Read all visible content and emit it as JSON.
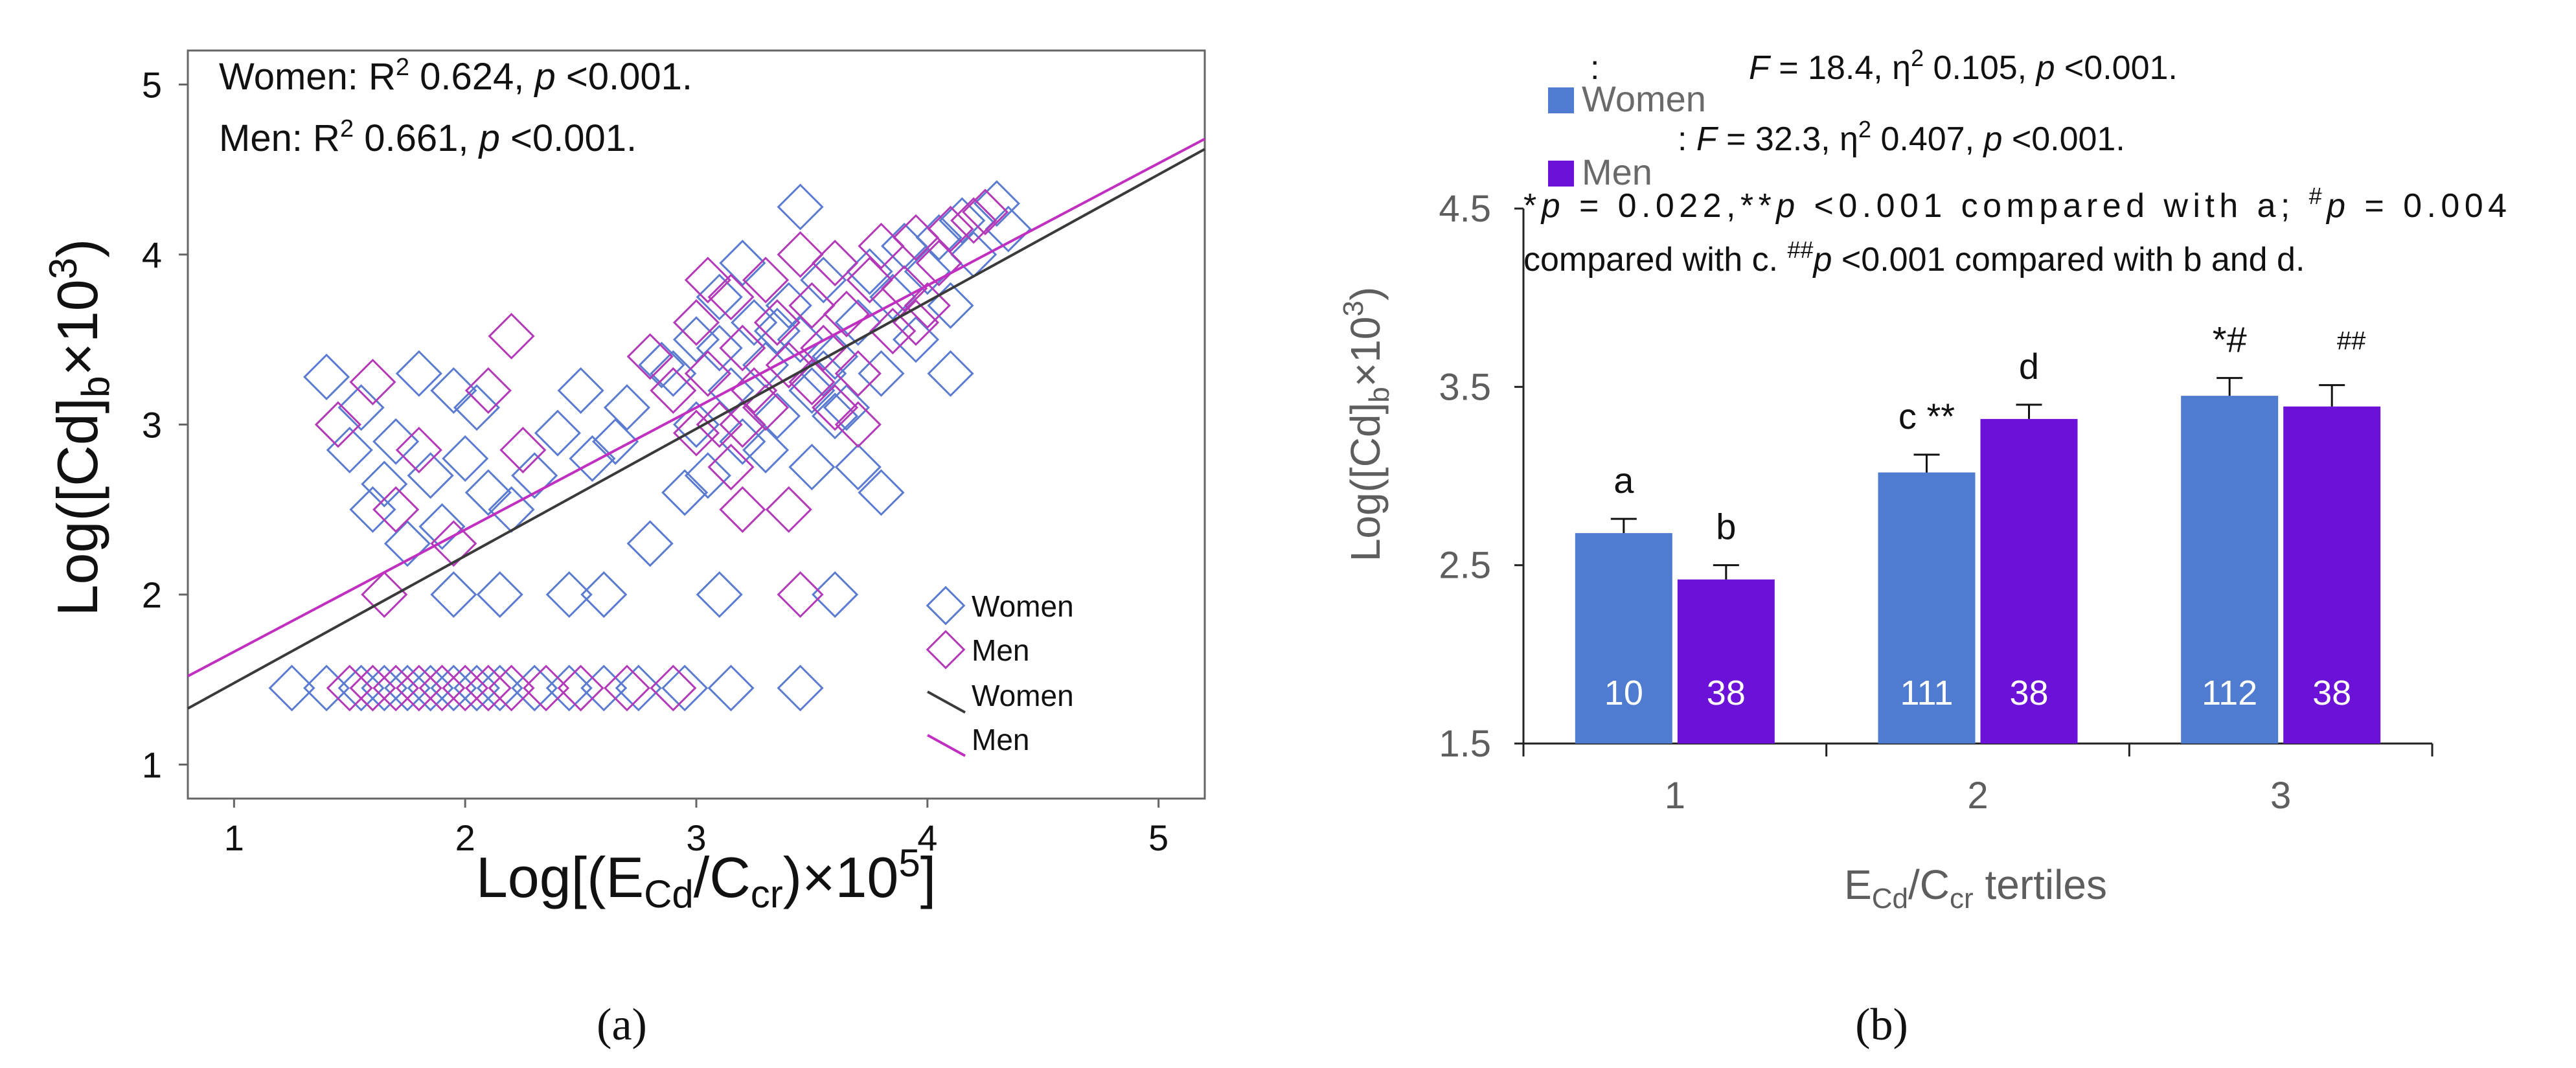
{
  "colors": {
    "women": "#5b7bd0",
    "men": "#b23ab8",
    "women_line": "#3a3a3a",
    "men_line": "#c12fc1",
    "bar_women": "#4f7bd0",
    "bar_men": "#6c12d8",
    "axis": "#555555",
    "bar_axis_text": "#5e5e5e"
  },
  "panel_a": {
    "caption": "(a)",
    "stat_women_prefix": "Women: R",
    "stat_women_sup": "2",
    "stat_women_mid": " 0.624, ",
    "stat_women_p": "p",
    "stat_women_suffix": " <0.001.",
    "stat_men_prefix": "Men: R",
    "stat_men_sup": "2",
    "stat_men_mid": " 0.661, ",
    "stat_men_p": "p",
    "stat_men_suffix": " <0.001.",
    "ylabel_a": "Log([Cd]",
    "ylabel_sub": "b",
    "ylabel_b": "×10",
    "ylabel_sup": "3",
    "ylabel_c": ")",
    "xlabel_a": "Log[(E",
    "xlabel_sub1": "Cd",
    "xlabel_b": "/C",
    "xlabel_sub2": "cr",
    "xlabel_c": ")×10",
    "xlabel_sup": "5",
    "xlabel_d": "]",
    "legend": [
      {
        "label": "Women",
        "kind": "marker",
        "series": "women"
      },
      {
        "label": "Men",
        "kind": "marker",
        "series": "men"
      },
      {
        "label": "Women",
        "kind": "line",
        "series": "women"
      },
      {
        "label": "Men",
        "kind": "line",
        "series": "men"
      }
    ]
  },
  "panel_b": {
    "caption": "(b)",
    "legend": [
      {
        "label": "Women",
        "series": "women"
      },
      {
        "label": "Men",
        "series": "men"
      }
    ],
    "stat_women_a": ": ",
    "stat_women_F": "F",
    "stat_women_b": " = 18.4, η",
    "stat_women_sup": "2",
    "stat_women_c": " 0.105, ",
    "stat_women_p": "p",
    "stat_women_d": " <0.001.",
    "stat_men_a": ": ",
    "stat_men_F": "F",
    "stat_men_b": " = 32.3, η",
    "stat_men_sup": "2",
    "stat_men_c": " 0.407, ",
    "stat_men_p": "p",
    "stat_men_d": " <0.001.",
    "note_line1_parts": [
      "*",
      "p",
      " = 0.022,**",
      "p",
      " <0.001 compared with a; ",
      "#",
      "p",
      " = 0.004"
    ],
    "note_line2_parts": [
      "compared with c. ",
      "##",
      "p",
      " <0.001 compared with b and d."
    ],
    "ylabel_a": "Log([Cd]",
    "ylabel_sub": "b",
    "ylabel_b": "×10",
    "ylabel_sup": "3",
    "ylabel_c": ")",
    "xlabel_a": "E",
    "xlabel_sub1": "Cd",
    "xlabel_b": "/C",
    "xlabel_sub2": "cr",
    "xlabel_c": " tertiles"
  },
  "chart_data": [
    {
      "type": "scatter",
      "title": "",
      "xlabel": "Log[(ECd/Ccr)×10^5]",
      "ylabel": "Log([Cd]b×10^3)",
      "xlim": [
        0.8,
        5.2
      ],
      "ylim": [
        0.8,
        5.2
      ],
      "xticks": [
        1,
        2,
        3,
        4,
        5
      ],
      "yticks": [
        1,
        2,
        3,
        4,
        5
      ],
      "regression": [
        {
          "name": "Women",
          "x": [
            0.8,
            5.2
          ],
          "y": [
            1.33,
            4.62
          ],
          "r2": 0.624
        },
        {
          "name": "Men",
          "x": [
            0.8,
            5.2
          ],
          "y": [
            1.52,
            4.68
          ],
          "r2": 0.661
        }
      ],
      "series": [
        {
          "name": "Women",
          "points": [
            [
              1.4,
              3.28
            ],
            [
              1.55,
              3.1
            ],
            [
              1.7,
              2.9
            ],
            [
              1.85,
              2.7
            ],
            [
              1.6,
              2.5
            ],
            [
              1.75,
              2.3
            ],
            [
              1.9,
              2.4
            ],
            [
              2.0,
              2.8
            ],
            [
              2.1,
              2.6
            ],
            [
              2.05,
              3.1
            ],
            [
              1.95,
              3.2
            ],
            [
              2.2,
              2.5
            ],
            [
              2.3,
              2.7
            ],
            [
              2.4,
              2.95
            ],
            [
              2.5,
              3.2
            ],
            [
              2.55,
              2.8
            ],
            [
              2.65,
              2.9
            ],
            [
              2.8,
              2.3
            ],
            [
              1.5,
              2.85
            ],
            [
              1.65,
              2.65
            ],
            [
              1.8,
              3.3
            ],
            [
              1.95,
              2.0
            ],
            [
              2.15,
              2.0
            ],
            [
              2.45,
              2.0
            ],
            [
              2.6,
              2.0
            ],
            [
              3.1,
              2.0
            ],
            [
              3.6,
              2.0
            ],
            [
              2.7,
              3.1
            ],
            [
              2.9,
              3.3
            ],
            [
              3.0,
              3.0
            ],
            [
              3.05,
              2.7
            ],
            [
              3.1,
              3.45
            ],
            [
              3.15,
              3.2
            ],
            [
              3.2,
              2.9
            ],
            [
              3.25,
              3.6
            ],
            [
              3.3,
              3.35
            ],
            [
              3.35,
              3.05
            ],
            [
              3.4,
              3.7
            ],
            [
              3.45,
              3.5
            ],
            [
              3.5,
              3.2
            ],
            [
              3.55,
              3.85
            ],
            [
              3.6,
              3.4
            ],
            [
              3.65,
              3.1
            ],
            [
              3.7,
              3.6
            ],
            [
              3.75,
              3.9
            ],
            [
              3.8,
              3.3
            ],
            [
              3.85,
              3.75
            ],
            [
              3.9,
              4.05
            ],
            [
              3.95,
              3.5
            ],
            [
              4.0,
              3.9
            ],
            [
              4.05,
              4.1
            ],
            [
              4.1,
              3.7
            ],
            [
              4.15,
              4.2
            ],
            [
              4.2,
              4.0
            ],
            [
              4.3,
              4.3
            ],
            [
              4.35,
              4.15
            ],
            [
              3.45,
              4.28
            ],
            [
              3.2,
              3.95
            ],
            [
              3.3,
              2.85
            ],
            [
              3.5,
              2.75
            ],
            [
              3.8,
              2.6
            ],
            [
              3.6,
              3.05
            ],
            [
              3.1,
              3.75
            ],
            [
              3.0,
              3.5
            ],
            [
              2.85,
              3.35
            ],
            [
              2.95,
              2.6
            ],
            [
              3.7,
              2.75
            ],
            [
              4.1,
              3.3
            ],
            [
              3.35,
              3.55
            ],
            [
              3.55,
              3.3
            ],
            [
              1.25,
              1.45
            ],
            [
              1.4,
              1.45
            ],
            [
              1.55,
              1.45
            ],
            [
              1.65,
              1.45
            ],
            [
              1.75,
              1.45
            ],
            [
              1.85,
              1.45
            ],
            [
              1.95,
              1.45
            ],
            [
              2.05,
              1.45
            ],
            [
              2.15,
              1.45
            ],
            [
              2.3,
              1.45
            ],
            [
              2.45,
              1.45
            ],
            [
              2.6,
              1.45
            ],
            [
              2.75,
              1.45
            ],
            [
              2.95,
              1.45
            ],
            [
              3.15,
              1.45
            ],
            [
              3.45,
              1.45
            ]
          ]
        },
        {
          "name": "Men",
          "points": [
            [
              1.45,
              3.0
            ],
            [
              1.6,
              3.25
            ],
            [
              1.8,
              2.85
            ],
            [
              2.2,
              3.52
            ],
            [
              2.25,
              2.85
            ],
            [
              1.95,
              2.3
            ],
            [
              1.7,
              2.5
            ],
            [
              1.65,
              2.0
            ],
            [
              2.1,
              3.2
            ],
            [
              3.45,
              2.0
            ],
            [
              3.2,
              3.0
            ],
            [
              2.8,
              3.4
            ],
            [
              2.9,
              3.2
            ],
            [
              3.0,
              3.6
            ],
            [
              3.05,
              3.3
            ],
            [
              3.1,
              3.0
            ],
            [
              3.15,
              3.75
            ],
            [
              3.2,
              3.45
            ],
            [
              3.25,
              3.2
            ],
            [
              3.3,
              3.85
            ],
            [
              3.35,
              3.6
            ],
            [
              3.4,
              3.35
            ],
            [
              3.45,
              4.0
            ],
            [
              3.5,
              3.7
            ],
            [
              3.55,
              3.45
            ],
            [
              3.6,
              3.95
            ],
            [
              3.65,
              3.65
            ],
            [
              3.7,
              3.3
            ],
            [
              3.75,
              3.85
            ],
            [
              3.8,
              4.05
            ],
            [
              3.85,
              3.55
            ],
            [
              3.9,
              3.8
            ],
            [
              3.95,
              4.1
            ],
            [
              4.0,
              3.7
            ],
            [
              4.05,
              3.95
            ],
            [
              4.1,
              4.15
            ],
            [
              4.2,
              4.2
            ],
            [
              4.25,
              4.25
            ],
            [
              3.0,
              2.95
            ],
            [
              3.15,
              2.75
            ],
            [
              3.3,
              3.1
            ],
            [
              3.05,
              3.85
            ],
            [
              3.6,
              3.1
            ],
            [
              3.5,
              3.25
            ],
            [
              3.4,
              2.5
            ],
            [
              3.2,
              2.5
            ],
            [
              3.7,
              3.0
            ],
            [
              3.95,
              3.6
            ],
            [
              1.5,
              1.45
            ],
            [
              1.6,
              1.45
            ],
            [
              1.7,
              1.45
            ],
            [
              1.8,
              1.45
            ],
            [
              1.9,
              1.45
            ],
            [
              2.0,
              1.45
            ],
            [
              2.1,
              1.45
            ],
            [
              2.2,
              1.45
            ],
            [
              2.35,
              1.45
            ],
            [
              2.5,
              1.45
            ],
            [
              2.7,
              1.45
            ],
            [
              2.9,
              1.45
            ]
          ]
        }
      ]
    },
    {
      "type": "bar",
      "title": "",
      "xlabel": "ECd/Ccr tertiles",
      "ylabel": "Log([Cd]b×10^3)",
      "ylim": [
        1.5,
        4.5
      ],
      "yticks": [
        1.5,
        2.5,
        3.5,
        4.5
      ],
      "categories": [
        "1",
        "2",
        "3"
      ],
      "series": [
        {
          "name": "Women",
          "values": [
            2.68,
            3.02,
            3.45
          ],
          "errors": [
            0.08,
            0.1,
            0.1
          ],
          "n": [
            "10",
            "111",
            "112"
          ],
          "labels": [
            "a",
            "c **",
            "*#"
          ]
        },
        {
          "name": "Men",
          "values": [
            2.42,
            3.32,
            3.39
          ],
          "errors": [
            0.08,
            0.08,
            0.12
          ],
          "n": [
            "38",
            "38",
            "38"
          ],
          "labels": [
            "b",
            "d",
            "##"
          ]
        }
      ]
    }
  ]
}
